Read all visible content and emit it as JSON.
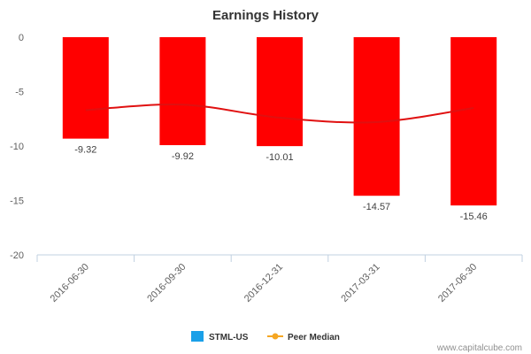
{
  "chart_data": {
    "type": "bar",
    "title": "Earnings History",
    "categories": [
      "2016-06-30",
      "2016-09-30",
      "2016-12-31",
      "2017-03-31",
      "2017-06-30"
    ],
    "series": [
      {
        "name": "STML-US",
        "type": "bar",
        "values": [
          -9.32,
          -9.92,
          -10.01,
          -14.57,
          -15.46
        ],
        "labels": [
          "-9.32",
          "-9.92",
          "-10.01",
          "-14.57",
          "-15.46"
        ]
      },
      {
        "name": "Peer Median",
        "type": "line",
        "values": [
          -6.7,
          -6.2,
          -7.4,
          -7.8,
          -6.5
        ]
      }
    ],
    "ylim": [
      -20,
      0
    ],
    "yticks": [
      0,
      -5,
      -10,
      -15,
      -20
    ],
    "xlabel": "",
    "ylabel": "",
    "grid": false,
    "legend_position": "bottom-center"
  },
  "colors": {
    "bars": "#ff0000",
    "line": "#e01010",
    "legend_stml": "#1aa0e8",
    "legend_peer": "#f5a623"
  },
  "credit": "www.capitalcube.com"
}
